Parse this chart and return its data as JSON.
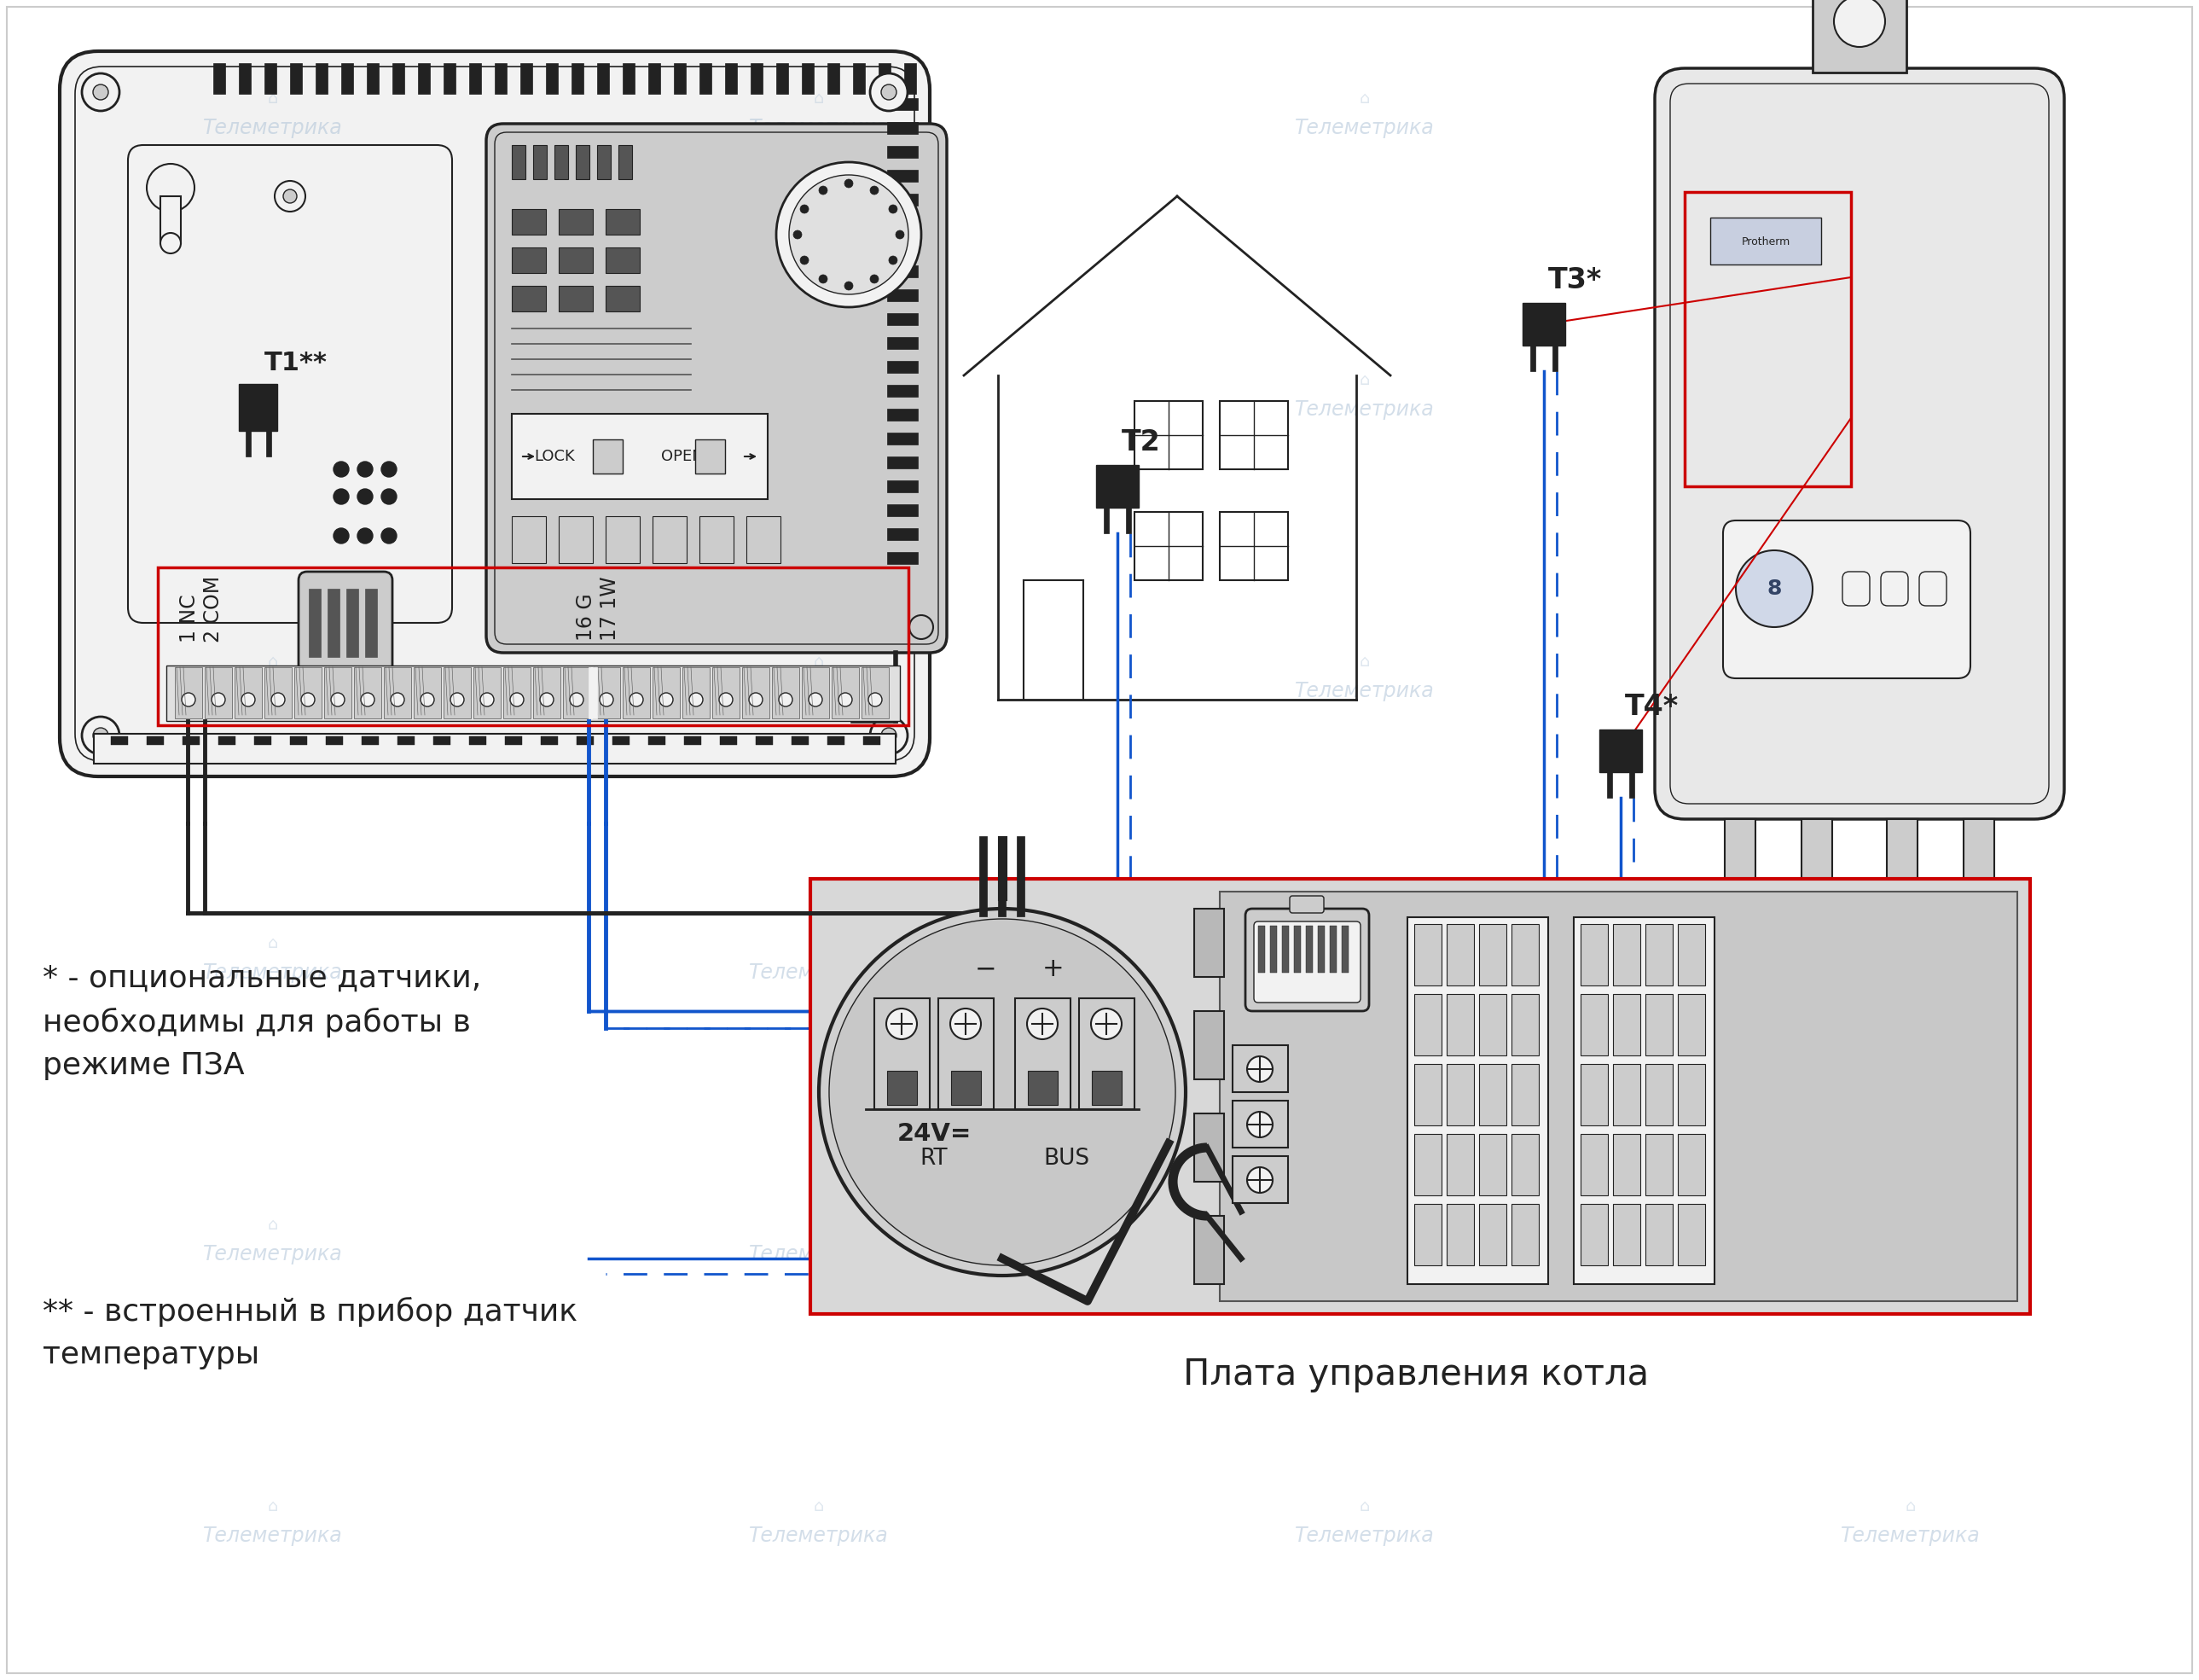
{
  "bg_color": "#ffffff",
  "title_bottom": "Плата управления котла",
  "note1": "* - опциональные датчики,\nнеобходимы для работы в\nрежиме ПЗА",
  "note2": "** - встроенный в прибор датчик\nтемпературы",
  "label_T1": "T1**",
  "label_T2": "T2",
  "label_T3": "T3*",
  "label_T4": "T4*",
  "terminal_label_left": "1 NC\n2 COM",
  "terminal_label_right": "16 G\n17 1W",
  "conn_line1": "24V=",
  "conn_line2": "RT",
  "conn_line3": "BUS",
  "conn_minus": "−",
  "conn_plus": "+",
  "watermark": "Телеметрика",
  "red_color": "#cc0000",
  "blue_color": "#1155cc",
  "black_color": "#222222",
  "dark_gray": "#555555",
  "gray_color": "#999999",
  "light_gray": "#cccccc",
  "lighter_gray": "#e0e0e0",
  "bg_panel": "#f2f2f2",
  "boiler_color": "#e8e8e8"
}
